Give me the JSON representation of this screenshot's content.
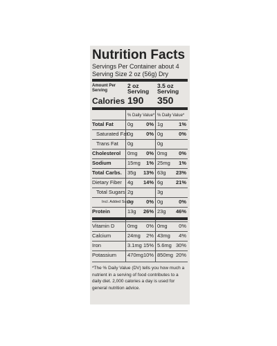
{
  "header": {
    "title": "Nutrition Facts",
    "servings": "Servings Per Container about 4",
    "serving_size": "Serving Size 2 oz (56g) Dry"
  },
  "columns": {
    "amount_label": "Amount Per Serving",
    "col1": "2 oz Serving",
    "col2": "3.5 oz Serving"
  },
  "calories": {
    "label": "Calories",
    "col1": "190",
    "col2": "350"
  },
  "daily_value_header": [
    "% Daily Value*",
    "% Daily Value*"
  ],
  "nutrients": [
    {
      "name": "Total Fat",
      "col1_amount": "0g",
      "col1_dv": "0%",
      "col2_amount": "1g",
      "col2_dv": "1%"
    },
    {
      "name": "Saturated Fat",
      "col1_amount": "0g",
      "col1_dv": "0%",
      "col2_amount": "0g",
      "col2_dv": "0%"
    },
    {
      "name": "Trans Fat",
      "col1_amount": "0g",
      "col2_amount": "0g"
    },
    {
      "name": "Cholesterol",
      "col1_amount": "0mg",
      "col1_dv": "0%",
      "col2_amount": "0mg",
      "col2_dv": "0%"
    },
    {
      "name": "Sodium",
      "col1_amount": "15mg",
      "col1_dv": "1%",
      "col2_amount": "25mg",
      "col2_dv": "1%"
    },
    {
      "name": "Total Carbs.",
      "col1_amount": "35g",
      "col1_dv": "13%",
      "col2_amount": "63g",
      "col2_dv": "23%"
    },
    {
      "name": "Dietary Fiber",
      "col1_amount": "4g",
      "col1_dv": "14%",
      "col2_amount": "6g",
      "col2_dv": "21%"
    },
    {
      "name": "Total Sugars",
      "col1_amount": "2g",
      "col2_amount": "3g"
    },
    {
      "name": "Incl. Added Sugars",
      "col1_amount": "0g",
      "col1_dv": "0%",
      "col2_amount": "0g",
      "col2_dv": "0%"
    },
    {
      "name": "Protein",
      "col1_amount": "13g",
      "col1_dv": "26%",
      "col2_amount": "23g",
      "col2_dv": "46%"
    }
  ],
  "vitamins_minerals": [
    {
      "name": "Vitamin D",
      "col1_amount": "0mg",
      "col1_dv": "0%",
      "col2_amount": "0mg",
      "col2_dv": "0%"
    },
    {
      "name": "Calcium",
      "col1_amount": "24mg",
      "col1_dv": "2%",
      "col2_amount": "43mg",
      "col2_dv": "4%"
    },
    {
      "name": "Iron",
      "col1_amount": "3.1mg",
      "col1_dv": "15%",
      "col2_amount": "5.6mg",
      "col2_dv": "30%"
    },
    {
      "name": "Potassium",
      "col1_amount": "470mg",
      "col1_dv": "10%",
      "col2_amount": "850mg",
      "col2_dv": "20%"
    }
  ],
  "footnote": "*The % Daily Value (DV) tells you how much a nutrient in a serving of food contributes to a daily diet. 2,000 calories a day is used for general nutrition advice."
}
